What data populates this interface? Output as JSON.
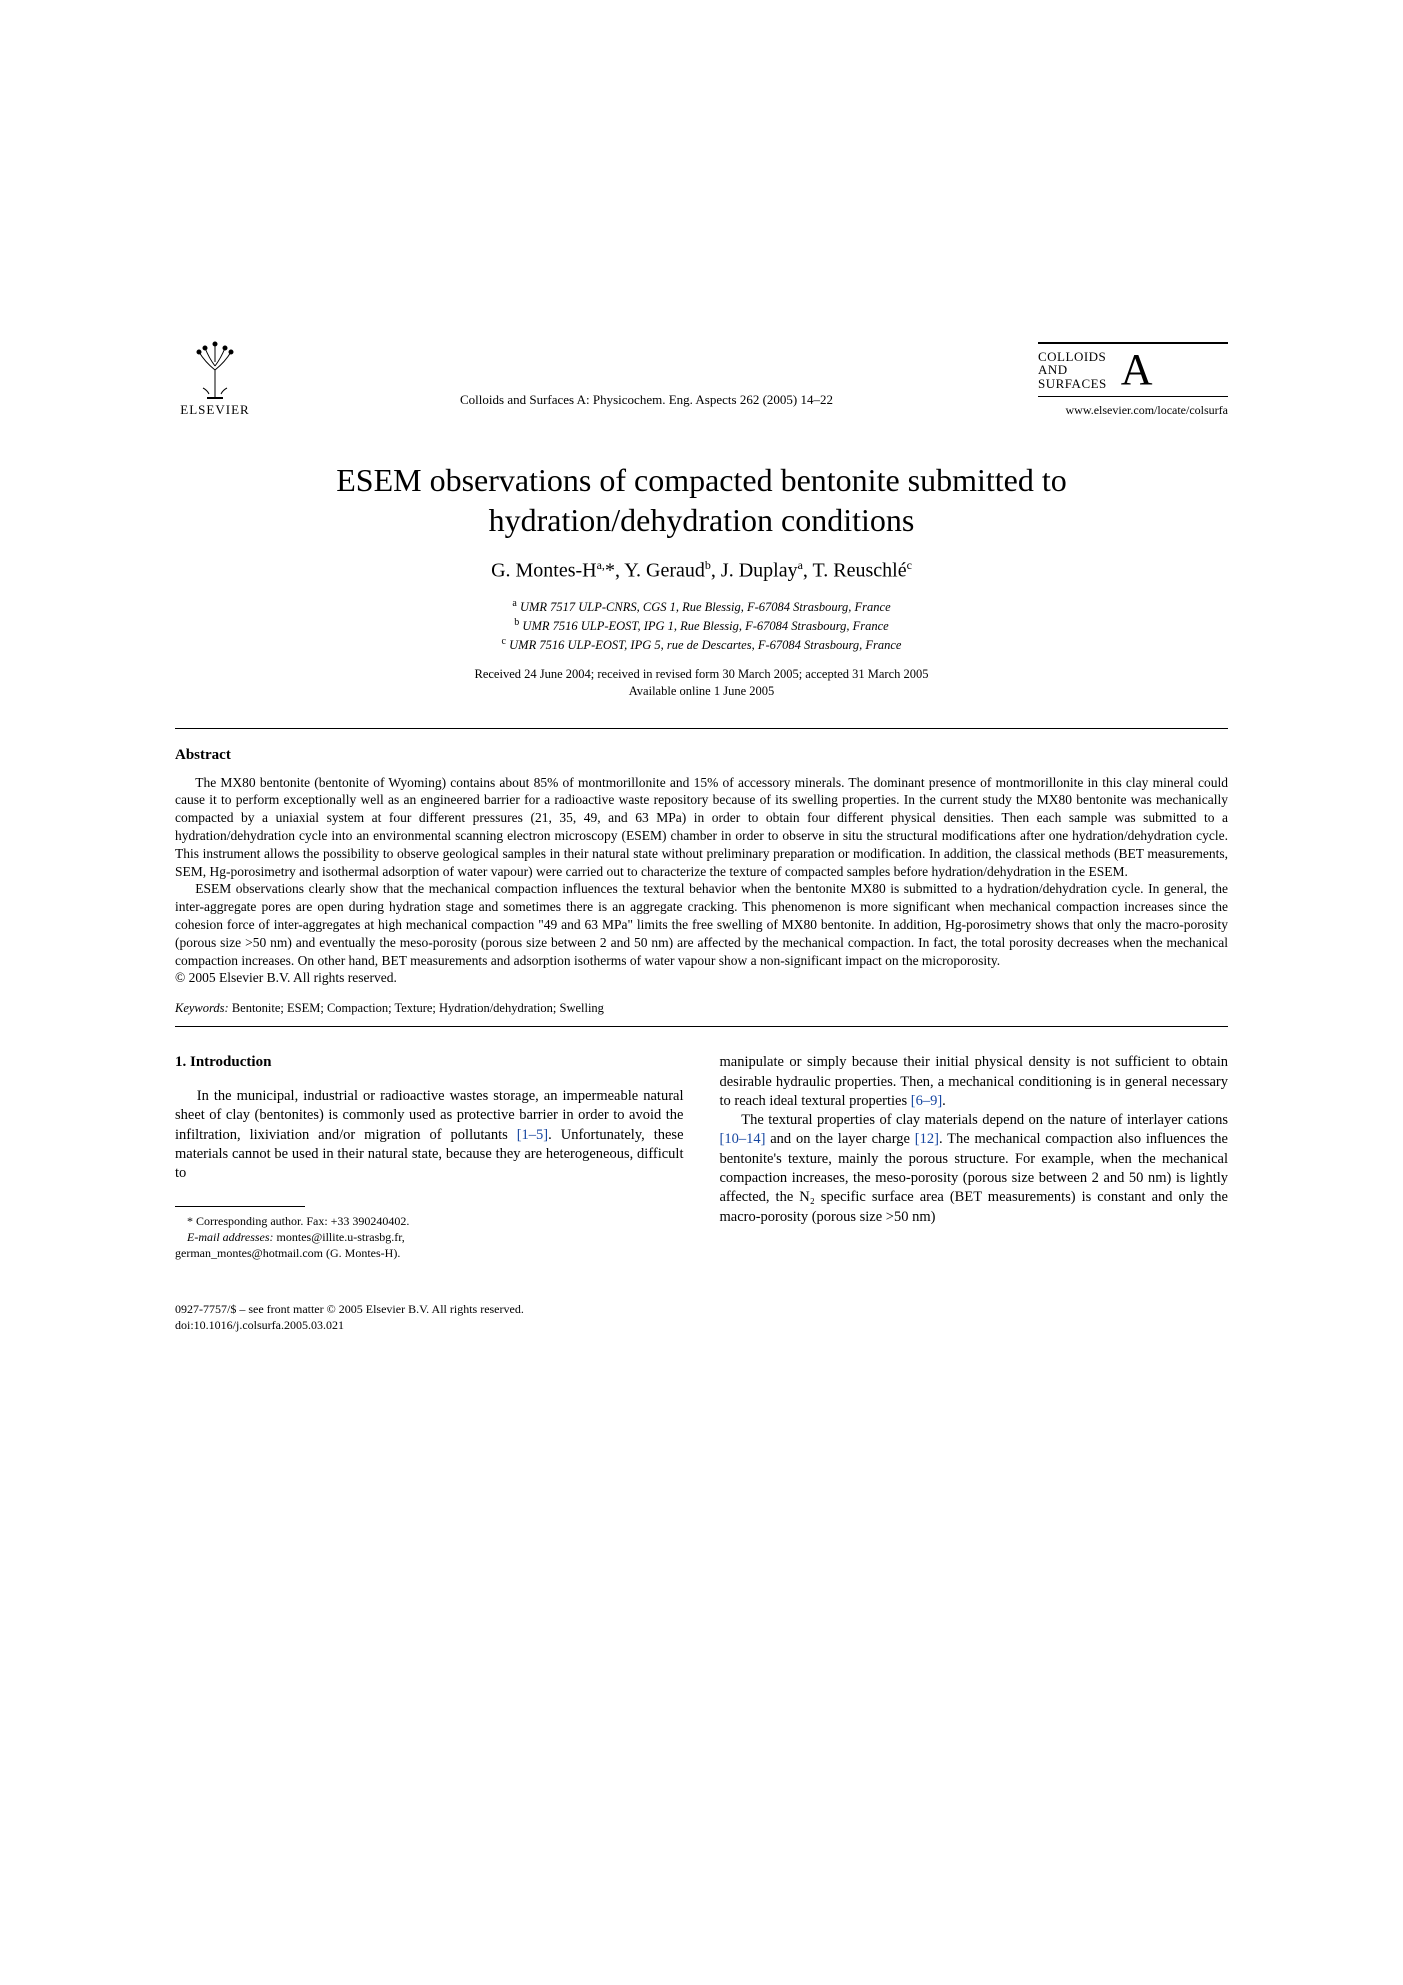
{
  "header": {
    "publisher": "ELSEVIER",
    "journal_reference": "Colloids and Surfaces A: Physicochem. Eng. Aspects 262 (2005) 14–22",
    "journal_name_line1": "COLLOIDS",
    "journal_name_line2": "AND",
    "journal_name_line3": "SURFACES",
    "journal_letter": "A",
    "journal_url": "www.elsevier.com/locate/colsurfa"
  },
  "article": {
    "title": "ESEM observations of compacted bentonite submitted to hydration/dehydration conditions",
    "authors_html": "G. Montes-H<sup>a,</sup>*, Y. Geraud<sup>b</sup>, J. Duplay<sup>a</sup>, T. Reuschlé<sup>c</sup>",
    "affiliations": [
      "<sup>a</sup> UMR 7517 ULP-CNRS, CGS 1, Rue Blessig, F-67084 Strasbourg, France",
      "<sup>b</sup> UMR 7516 ULP-EOST, IPG 1, Rue Blessig, F-67084 Strasbourg, France",
      "<sup>c</sup> UMR 7516 ULP-EOST, IPG 5, rue de Descartes, F-67084 Strasbourg, France"
    ],
    "dates_line1": "Received 24 June 2004; received in revised form 30 March 2005; accepted 31 March 2005",
    "dates_line2": "Available online 1 June 2005"
  },
  "abstract": {
    "heading": "Abstract",
    "p1": "The MX80 bentonite (bentonite of Wyoming) contains about 85% of montmorillonite and 15% of accessory minerals. The dominant presence of montmorillonite in this clay mineral could cause it to perform exceptionally well as an engineered barrier for a radioactive waste repository because of its swelling properties. In the current study the MX80 bentonite was mechanically compacted by a uniaxial system at four different pressures (21, 35, 49, and 63 MPa) in order to obtain four different physical densities. Then each sample was submitted to a hydration/dehydration cycle into an environmental scanning electron microscopy (ESEM) chamber in order to observe in situ the structural modifications after one hydration/dehydration cycle. This instrument allows the possibility to observe geological samples in their natural state without preliminary preparation or modification. In addition, the classical methods (BET measurements, SEM, Hg-porosimetry and isothermal adsorption of water vapour) were carried out to characterize the texture of compacted samples before hydration/dehydration in the ESEM.",
    "p2": "ESEM observations clearly show that the mechanical compaction influences the textural behavior when the bentonite MX80 is submitted to a hydration/dehydration cycle. In general, the inter-aggregate pores are open during hydration stage and sometimes there is an aggregate cracking. This phenomenon is more significant when mechanical compaction increases since the cohesion force of inter-aggregates at high mechanical compaction \"49 and 63 MPa\" limits the free swelling of MX80 bentonite. In addition, Hg-porosimetry shows that only the macro-porosity (porous size >50 nm) and eventually the meso-porosity (porous size between 2 and 50 nm) are affected by the mechanical compaction. In fact, the total porosity decreases when the mechanical compaction increases. On other hand, BET measurements and adsorption isotherms of water vapour show a non-significant impact on the microporosity.",
    "copyright": "© 2005 Elsevier B.V. All rights reserved."
  },
  "keywords": {
    "label": "Keywords:",
    "text": "  Bentonite; ESEM; Compaction; Texture; Hydration/dehydration; Swelling"
  },
  "body": {
    "section_heading": "1. Introduction",
    "left_p1_pre": "In the municipal, industrial or radioactive wastes storage, an impermeable natural sheet of clay (bentonites) is commonly used as protective barrier in order to avoid the infiltration, lixiviation and/or migration of pollutants ",
    "left_ref1": "[1–5]",
    "left_p1_post": ". Unfortunately, these materials cannot be used in their natural state, because they are heterogeneous, difficult to",
    "right_p1_pre": "manipulate or simply because their initial physical density is not sufficient to obtain desirable hydraulic properties. Then, a mechanical conditioning is in general necessary to reach ideal textural properties ",
    "right_ref1": "[6–9]",
    "right_p1_post": ".",
    "right_p2_a": "The textural properties of clay materials depend on the nature of interlayer cations ",
    "right_ref2": "[10–14]",
    "right_p2_b": " and on the layer charge ",
    "right_ref3": "[12]",
    "right_p2_c": ". The mechanical compaction also influences the bentonite's texture, mainly the porous structure. For example, when the mechanical compaction increases, the meso-porosity (porous size between 2 and 50 nm) is lightly affected, the N₂ specific surface area (BET measurements) is constant and only the macro-porosity (porous size >50 nm)"
  },
  "footnotes": {
    "corr_label": "* Corresponding author. Fax: +33 390240402.",
    "email_label": "E-mail addresses:",
    "emails": " montes@illite.u-strasbg.fr,",
    "emails2": "german_montes@hotmail.com (G. Montes-H)."
  },
  "bottom": {
    "line1": "0927-7757/$ – see front matter © 2005 Elsevier B.V. All rights reserved.",
    "line2": "doi:10.1016/j.colsurfa.2005.03.021"
  },
  "colors": {
    "link": "#1646a0",
    "text": "#000000",
    "background": "#ffffff"
  }
}
